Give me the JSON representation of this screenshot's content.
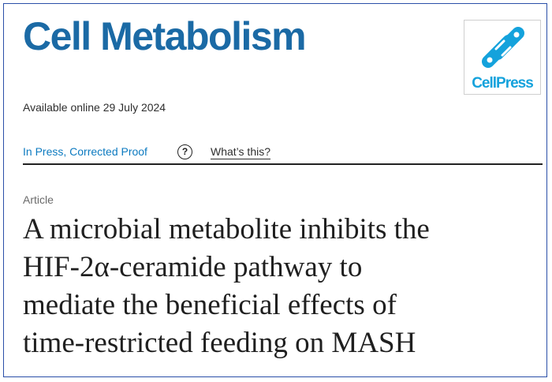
{
  "journal": {
    "title": "Cell Metabolism"
  },
  "publisher_logo": {
    "text": "CellPress",
    "icon": "cellpress-link-icon",
    "color": "#14a2dc"
  },
  "availability": {
    "text": "Available online 29 July 2024"
  },
  "status": {
    "label": "In Press, Corrected Proof",
    "help_icon": "question-circle-icon",
    "help_glyph": "?",
    "whats_this": "What’s this?"
  },
  "article": {
    "type": "Article",
    "title_lines": [
      "A microbial metabolite inhibits the",
      "HIF-2α-ceramide pathway to",
      "mediate the beneficial effects of",
      "time-restricted feeding on MASH"
    ]
  },
  "colors": {
    "journal_blue": "#1b6aa5",
    "link_blue": "#0c7ac0",
    "frame_border": "#2a4fa8"
  }
}
